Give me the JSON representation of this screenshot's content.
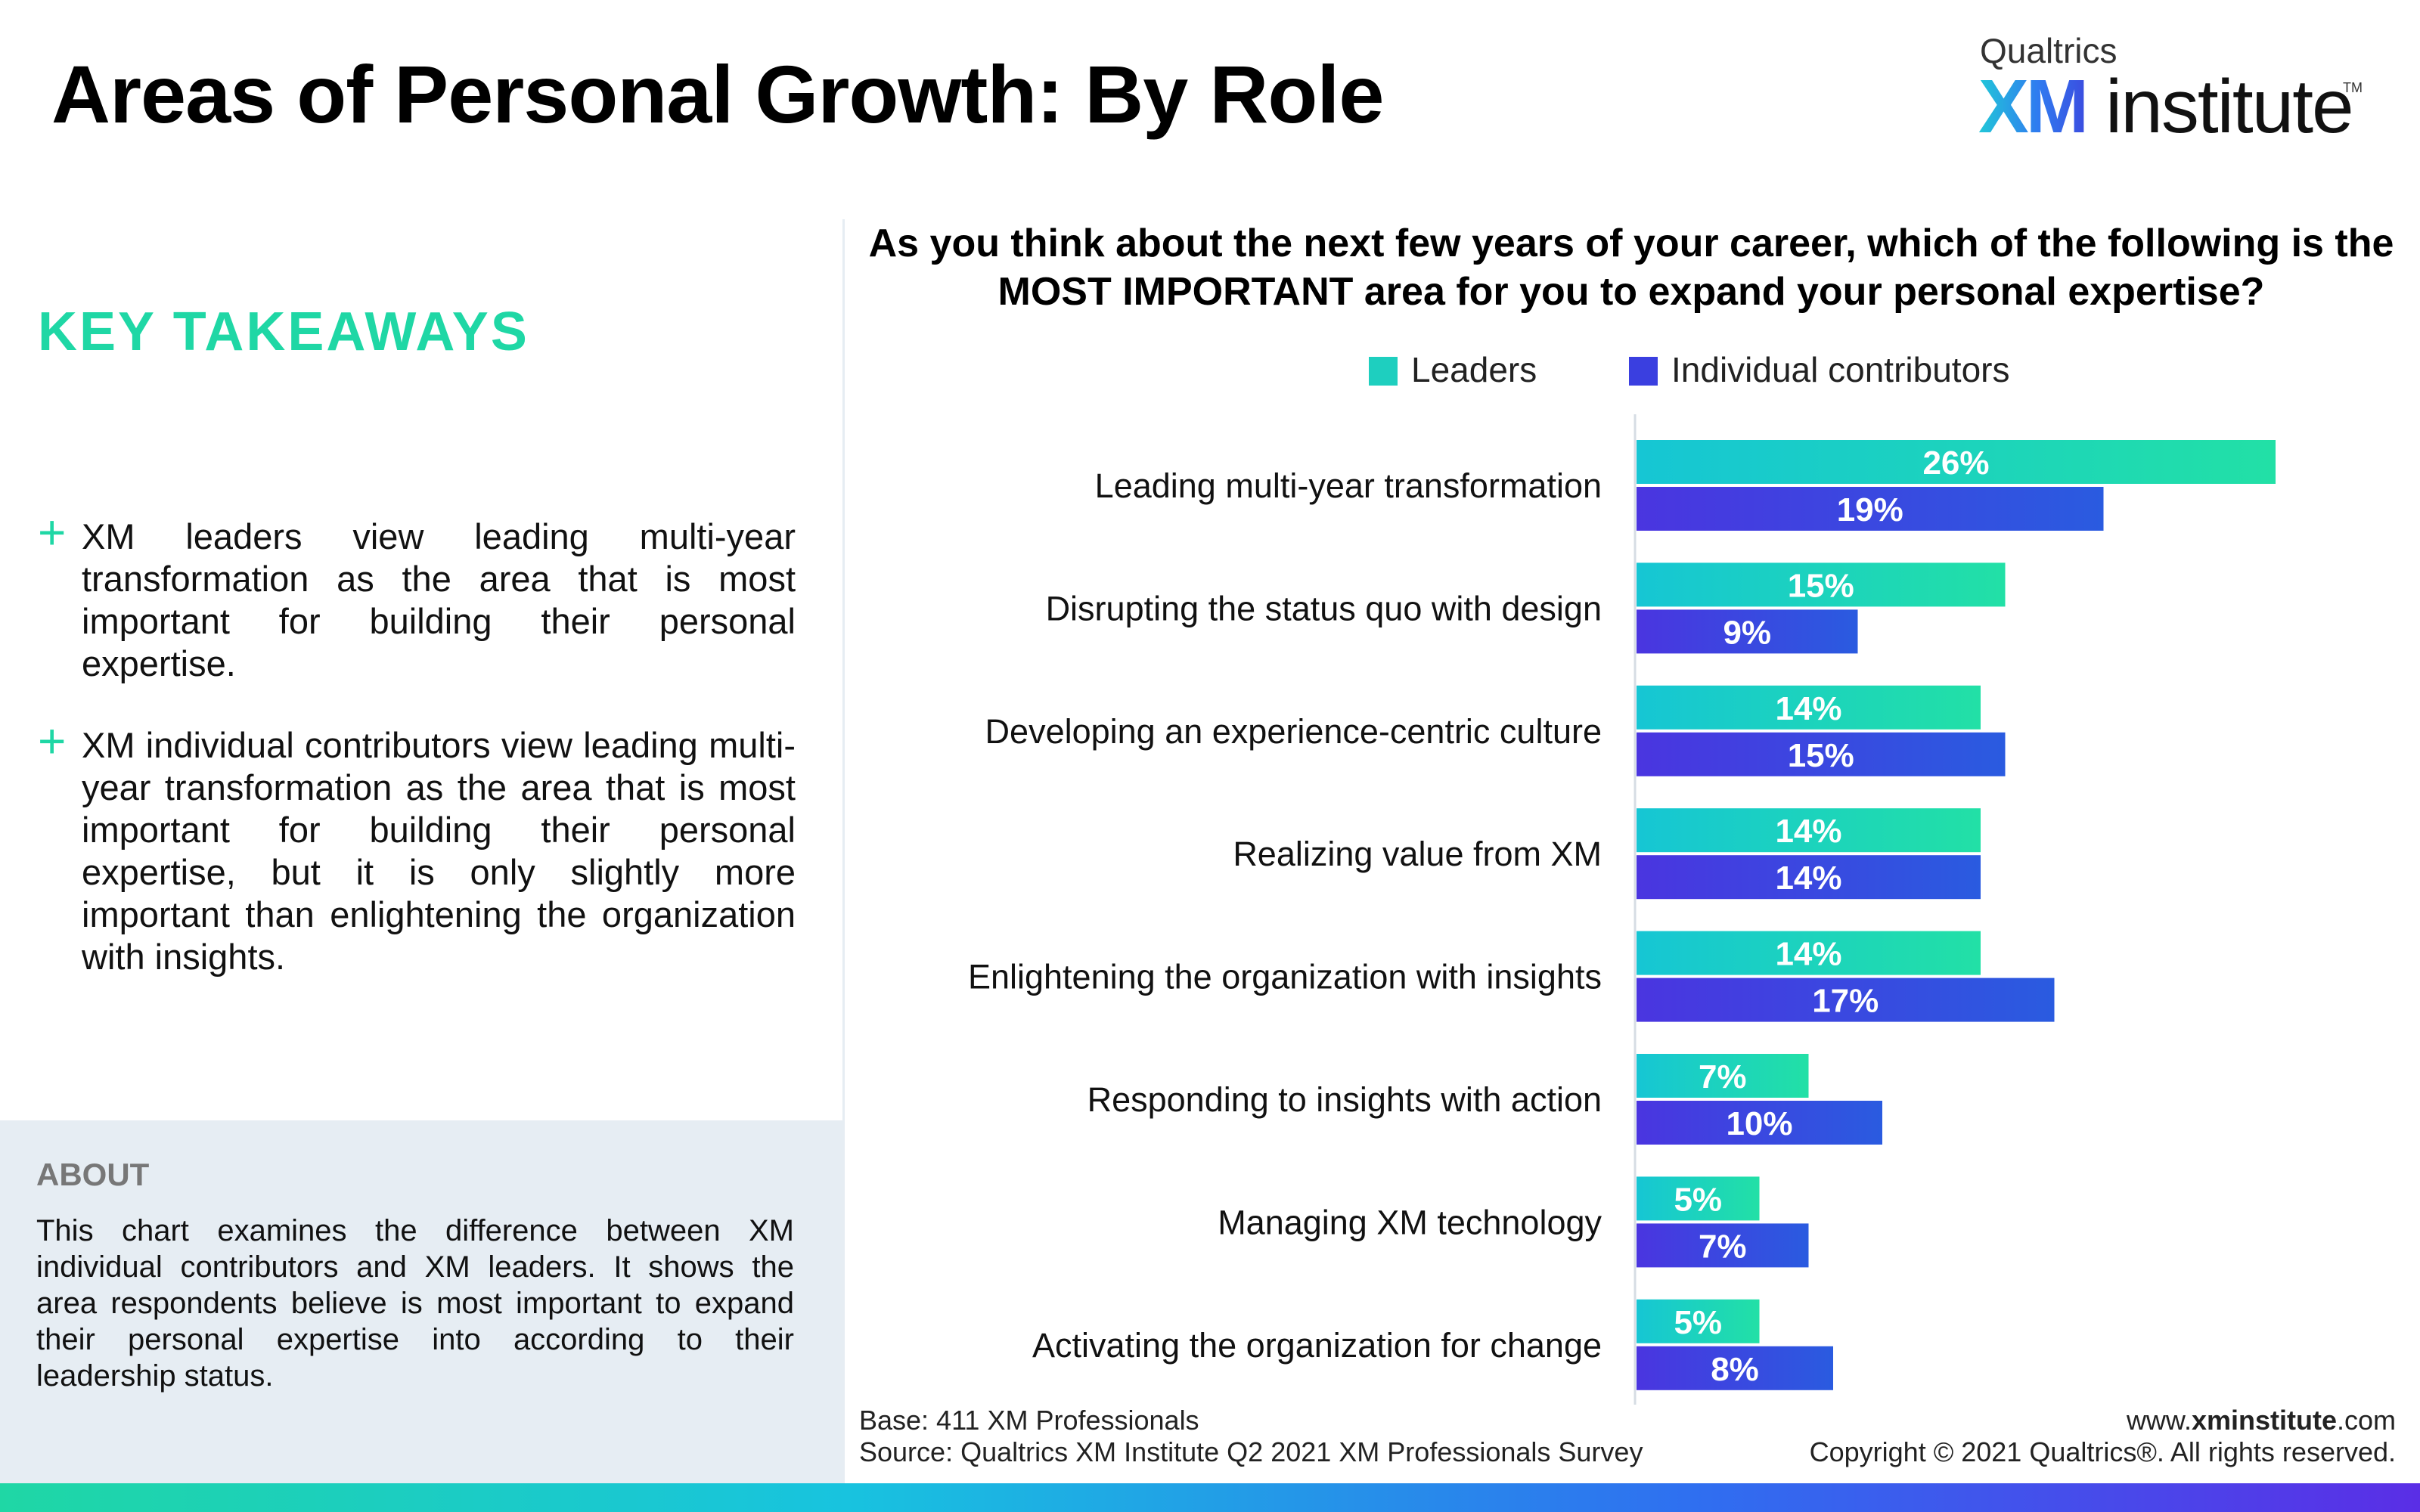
{
  "header": {
    "title": "Areas of Personal Growth: By Role",
    "logo_top": "Qualtrics",
    "logo_xm": "XM",
    "logo_institute": "institute",
    "logo_tm": "TM"
  },
  "left_panel": {
    "key_takeaways_title": "KEY TAKEAWAYS",
    "takeaways": [
      "XM leaders view leading multi-year transformation as the area that is most important for building their personal expertise.",
      "XM individual contributors view leading multi-year transformation as the area that is most important for building their personal expertise, but it is only slightly more important than enlightening the organization with insights."
    ],
    "about_title": "ABOUT",
    "about_text": "This chart examines the difference between XM individual contributors and XM leaders. It shows the area respondents believe is most important to expand their personal expertise into according to their leadership status."
  },
  "chart_data": {
    "type": "bar",
    "orientation": "horizontal",
    "title": "As you think about the next few years of your career, which of the following is the MOST IMPORTANT area for you to expand your personal expertise?",
    "categories": [
      "Leading multi-year transformation",
      "Disrupting the status quo with design",
      "Developing an experience-centric culture",
      "Realizing value from XM",
      "Enlightening the organization with insights",
      "Responding to insights with action",
      "Managing XM technology",
      "Activating the organization for change"
    ],
    "series": [
      {
        "name": "Leaders",
        "values": [
          26,
          15,
          14,
          14,
          14,
          7,
          5,
          5
        ],
        "labels": [
          "26%",
          "15%",
          "14%",
          "14%",
          "14%",
          "7%",
          "5%",
          "5%"
        ],
        "color_start": "#16c6d4",
        "color_end": "#22e0a6"
      },
      {
        "name": "Individual contributors",
        "values": [
          19,
          9,
          15,
          14,
          17,
          10,
          7,
          8
        ],
        "labels": [
          "19%",
          "9%",
          "15%",
          "14%",
          "17%",
          "10%",
          "7%",
          "8%"
        ],
        "color_start": "#4a35e0",
        "color_end": "#2a5be0"
      }
    ],
    "xlim": [
      0,
      30
    ],
    "unit": "%",
    "legend": "top-center",
    "grid": false
  },
  "legend_colors": {
    "leaders": "#1ecfbf",
    "individual_contributors": "#3a3fe0"
  },
  "footer": {
    "base": "Base: 411 XM Professionals",
    "source": "Source: Qualtrics XM Institute Q2 2021 XM Professionals Survey",
    "url_prefix": "www.",
    "url_bold": "xminstitute",
    "url_suffix": ".com",
    "copyright": "Copyright © 2021 Qualtrics®. All rights reserved."
  }
}
